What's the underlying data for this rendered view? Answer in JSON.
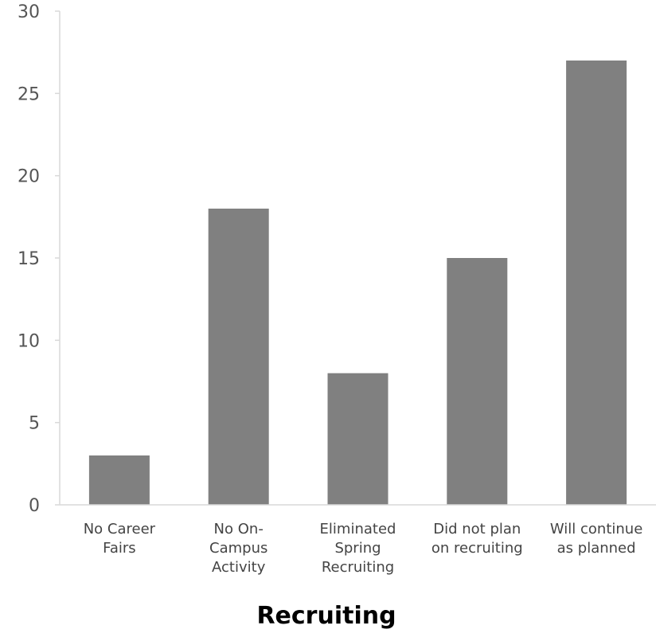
{
  "chart_data": {
    "type": "bar",
    "categories": [
      "No Career Fairs",
      "No On-Campus Activity",
      "Eliminated Spring Recruiting",
      "Did not plan on recruiting",
      "Will continue as planned"
    ],
    "category_lines": [
      [
        "No Career",
        "Fairs"
      ],
      [
        "No On-",
        "Campus",
        "Activity"
      ],
      [
        "Eliminated",
        "Spring",
        "Recruiting"
      ],
      [
        "Did not plan",
        "on recruiting"
      ],
      [
        "Will continue",
        "as planned"
      ]
    ],
    "values": [
      3,
      18,
      8,
      15,
      27
    ],
    "title": "",
    "xlabel": "Recruiting",
    "ylabel": "",
    "ylim": [
      0,
      30
    ],
    "yticks": [
      0,
      5,
      10,
      15,
      20,
      25,
      30
    ],
    "bar_color": "#808080",
    "grid": false,
    "legend": "none"
  }
}
